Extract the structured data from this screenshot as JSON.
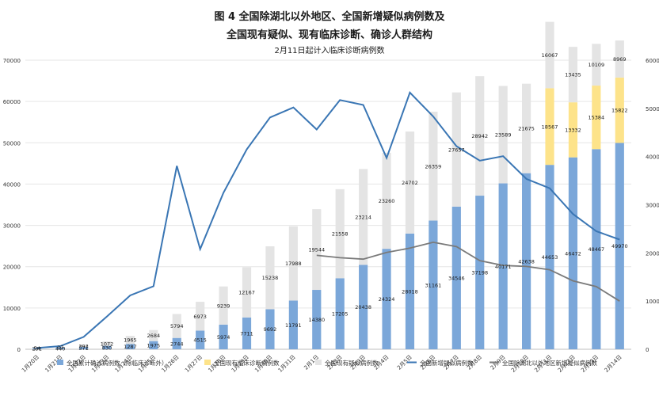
{
  "chart_data": {
    "type": "bar",
    "title": "图 4 全国除湖北以外地区、全国新增疑似病例数及",
    "title_line2": "全国现有疑似、现有临床诊断、确诊人群结构",
    "subtitle": "2月11日起计入临床诊断病例数",
    "categories": [
      "1月20日",
      "1月21日",
      "1月22日",
      "1月23日",
      "1月24日",
      "1月25日",
      "1月26日",
      "1月27日",
      "1月28日",
      "1月29日",
      "1月30日",
      "1月31日",
      "2月1日",
      "2月2日",
      "2月3日",
      "2月4日",
      "2月5日",
      "2月6日",
      "2月7日",
      "2月8日",
      "2月9日",
      "2月10日",
      "2月11日",
      "2月12日",
      "2月13日",
      "2月14日"
    ],
    "left_axis": {
      "min": 0,
      "max": 70000,
      "ticks": [
        "0",
        "10000",
        "20000",
        "30000",
        "40000",
        "50000",
        "60000",
        "70000"
      ]
    },
    "right_axis": {
      "min": 0,
      "max": 6000,
      "ticks": [
        "0",
        "1000",
        "2000",
        "3000",
        "4000",
        "5000",
        "6000"
      ]
    },
    "stack_series": [
      {
        "name": "全国累计确诊病例数（除临床诊断外）",
        "color": "#7ba7d9",
        "label_color": "#1a1a1a",
        "values": [
          291,
          440,
          571,
          830,
          1287,
          1975,
          2744,
          4515,
          5974,
          7711,
          9692,
          11791,
          14380,
          17205,
          20438,
          24324,
          28018,
          31161,
          34546,
          37198,
          40171,
          42638,
          44653,
          46472,
          48467,
          49970
        ],
        "labels": [
          "291",
          "440",
          "571",
          "830",
          "1287",
          "1975",
          "2744",
          "4515",
          "5974",
          "7711",
          "9692",
          "11791",
          "14380",
          "17205",
          "20438",
          "24324",
          "28018",
          "31161",
          "34546",
          "37198",
          "40171",
          "42638",
          "44653",
          "46472",
          "48467",
          "49970"
        ]
      },
      {
        "name": "全国现有临床诊断病例数",
        "color": "#fde38a",
        "label_color": "#1a1a1a",
        "values": [
          0,
          0,
          0,
          0,
          0,
          0,
          0,
          0,
          0,
          0,
          0,
          0,
          0,
          0,
          0,
          0,
          0,
          0,
          0,
          0,
          0,
          0,
          18567,
          13332,
          15384,
          15822
        ],
        "labels": [
          "",
          "",
          "",
          "",
          "",
          "",
          "",
          "",
          "",
          "",
          "",
          "",
          "",
          "",
          "",
          "",
          "",
          "",
          "",
          "",
          "",
          "",
          "18567",
          "13332",
          "15384",
          "15822"
        ]
      },
      {
        "name": "全国现有疑似病例数",
        "color": "#e4e4e4",
        "label_color": "#1a1a1a",
        "values": [
          54,
          37,
          393,
          1072,
          1965,
          2684,
          5794,
          6973,
          9239,
          12167,
          15238,
          17988,
          19544,
          21558,
          23214,
          23260,
          24702,
          26359,
          27657,
          28942,
          23589,
          21675,
          16067,
          13435,
          10109,
          8969
        ],
        "labels": [
          "54",
          "37",
          "393",
          "1072",
          "1965",
          "2684",
          "5794",
          "6973",
          "9239",
          "12167",
          "15238",
          "17988",
          "19544",
          "21558",
          "23214",
          "23260",
          "24702",
          "26359",
          "27657",
          "28942",
          "23589",
          "21675",
          "16067",
          "13435",
          "10109",
          "8969"
        ]
      }
    ],
    "line_series": [
      {
        "name": "全国新增疑似病例数",
        "color": "#3a76b4",
        "axis": "right",
        "values": [
          27,
          65,
          257,
          680,
          1118,
          1309,
          3806,
          2077,
          3248,
          4148,
          4812,
          5019,
          4562,
          5173,
          5072,
          3971,
          5328,
          4833,
          4214,
          3916,
          4008,
          3536,
          3342,
          2807,
          2450,
          2277
        ]
      },
      {
        "name": "全国除湖北以外地区新增疑似病例数",
        "color": "#7a7a7a",
        "axis": "right",
        "values": [
          null,
          null,
          null,
          null,
          null,
          null,
          null,
          null,
          null,
          null,
          null,
          null,
          1950,
          1900,
          1870,
          2010,
          2100,
          2220,
          2130,
          1840,
          1740,
          1720,
          1650,
          1420,
          1300,
          1000
        ]
      }
    ],
    "legend_position": "bottom",
    "grid": true
  }
}
